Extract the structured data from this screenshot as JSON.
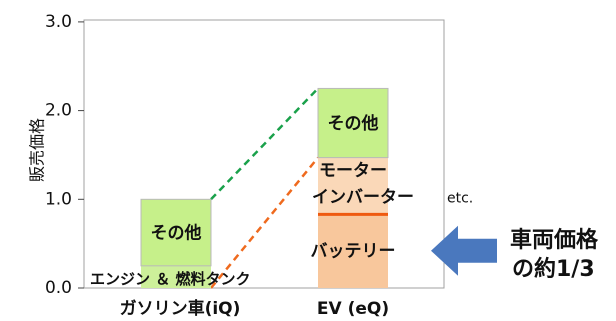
{
  "chart_data": {
    "type": "bar",
    "stacked": true,
    "ylabel": "販売価格",
    "ylim": [
      0,
      3.0
    ],
    "yticks": [
      "0.0",
      "1.0",
      "2.0",
      "3.0"
    ],
    "grid": false,
    "categories": [
      "ガソリン車(iQ)",
      "EV (eQ)"
    ],
    "bars": [
      {
        "category": "ガソリン車(iQ)",
        "segments": [
          {
            "label": "エンジン ＆ 燃料タンク",
            "start": 0.0,
            "end": 0.25,
            "color": "#cdf09a"
          },
          {
            "label": "その他",
            "start": 0.25,
            "end": 1.0,
            "color": "#c6f08a"
          }
        ]
      },
      {
        "category": "EV (eQ)",
        "segments": [
          {
            "label": "バッテリー",
            "start": 0.0,
            "end": 0.83,
            "color": "#f8c79c"
          },
          {
            "label": "モーターインバーター",
            "start": 0.83,
            "end": 1.47,
            "color": "#fad8b8"
          },
          {
            "label": "その他",
            "start": 1.47,
            "end": 2.25,
            "color": "#c6f08a"
          }
        ]
      }
    ],
    "divider_value": 0.83,
    "connectors": [
      {
        "from_category": 0,
        "from_value": 1.0,
        "to_category": 1,
        "to_value": 2.25,
        "color": "#1aa14b"
      },
      {
        "from_category": 0,
        "from_value": 0.0,
        "to_category": 1,
        "to_value": 1.47,
        "color": "#ef6a1e"
      }
    ],
    "annotations": {
      "motor_line1": "モーター",
      "motor_line2": "インバーター",
      "etc": "etc.",
      "arrow_note_line1": "車両価格",
      "arrow_note_line2": "の約1/3"
    },
    "colors": {
      "green": "#c6f08a",
      "battery": "#f8c79c",
      "motor": "#fad8b8",
      "divider": "#ef5a10",
      "arrow": "#4a78be",
      "green_dash": "#1aa14b",
      "orange_dash": "#ef6a1e"
    }
  }
}
